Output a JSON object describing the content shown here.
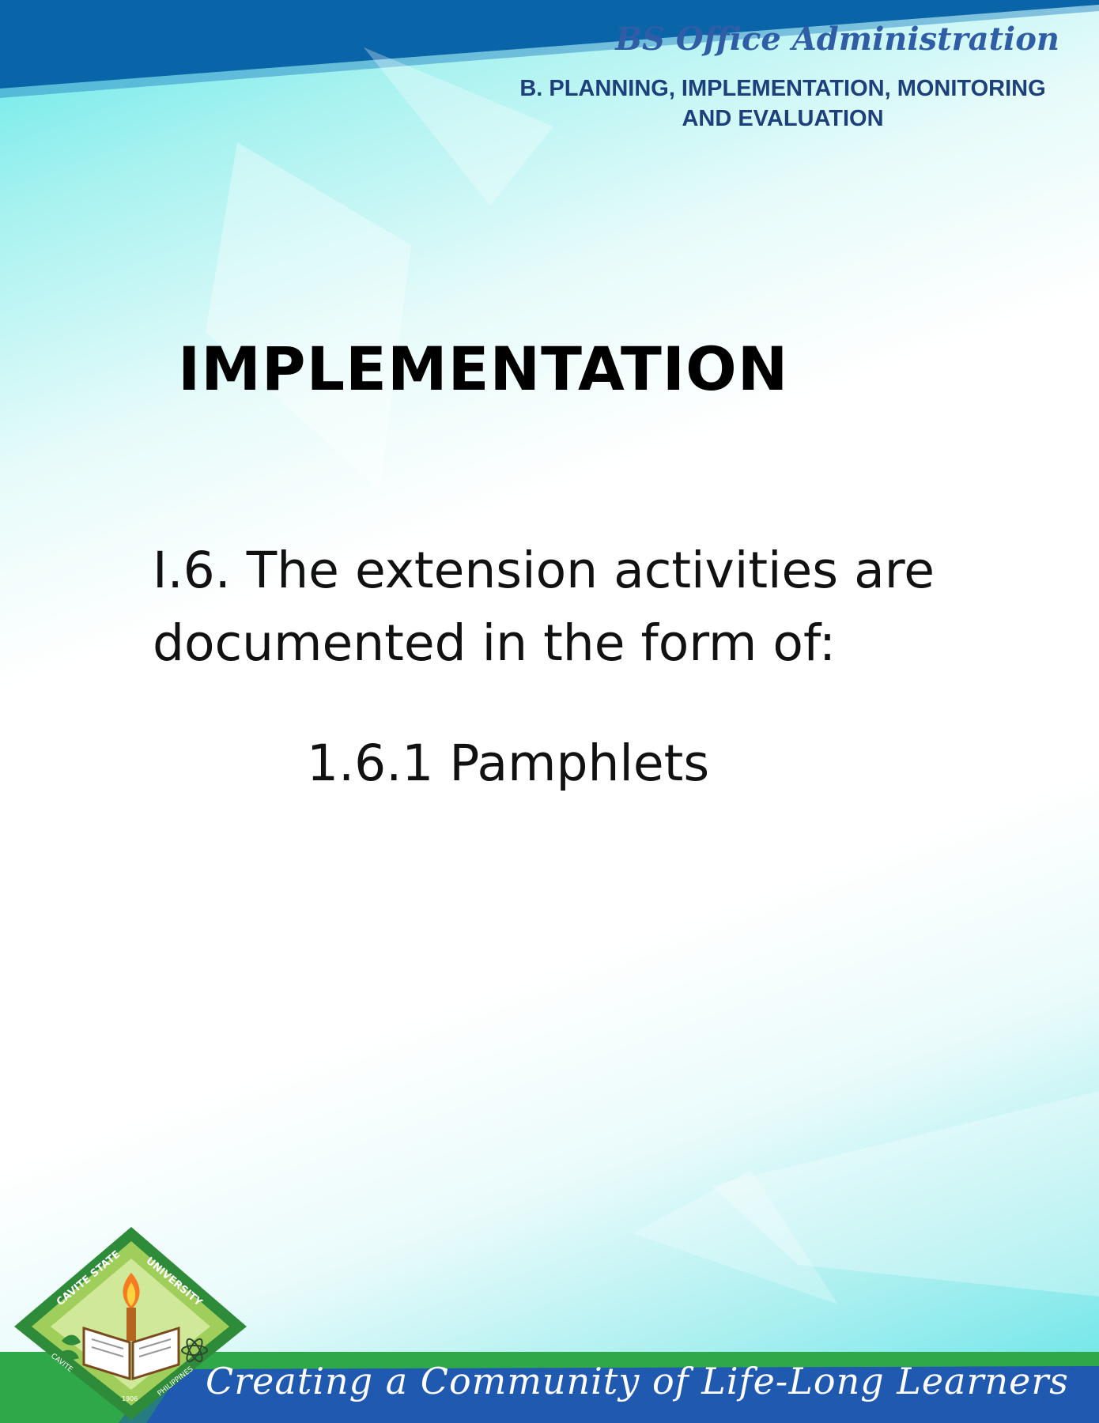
{
  "header": {
    "program": "BS Office Administration",
    "section_line1": "B. PLANNING, IMPLEMENTATION, MONITORING",
    "section_line2": "AND EVALUATION"
  },
  "main": {
    "title": "IMPLEMENTATION",
    "statement_line1": "I.6. The extension activities are",
    "statement_line2": "documented in the form of:",
    "item": "1.6.1 Pamphlets"
  },
  "footer": {
    "slogan": "Creating a Community of Life-Long Learners",
    "logo_text": {
      "top_left": "CAVITE STATE",
      "top_right": "UNIVERSITY",
      "bottom_left": "CAVITE",
      "bottom_right": "PHILIPPINES",
      "year": "1906"
    }
  },
  "colors": {
    "top_band": "#0a64a8",
    "footer_blue": "#1f59b0",
    "footer_green": "#2fa84a",
    "title": "#000000",
    "program_text": "#2f5ea6",
    "section_text": "#1d3f7a"
  },
  "icons": [
    "university-seal-icon",
    "torch-icon",
    "open-book-icon",
    "atom-icon",
    "leaf-icon"
  ]
}
